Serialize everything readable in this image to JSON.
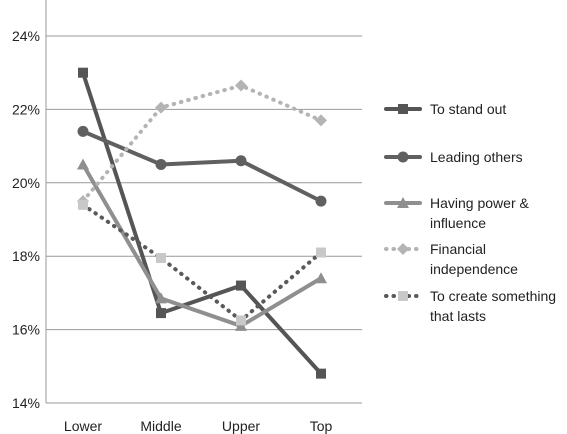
{
  "chart_data": {
    "type": "line",
    "title": "",
    "xlabel": "",
    "ylabel": "",
    "categories": [
      "Lower",
      "Middle",
      "Upper",
      "Top"
    ],
    "ylim": [
      14,
      24
    ],
    "yticks": [
      {
        "value": 14,
        "label": "14%"
      },
      {
        "value": 16,
        "label": "16%"
      },
      {
        "value": 18,
        "label": "18%"
      },
      {
        "value": 20,
        "label": "20%"
      },
      {
        "value": 22,
        "label": "22%"
      },
      {
        "value": 24,
        "label": "24%"
      }
    ],
    "grid": "horizontal",
    "legend_position": "right",
    "series": [
      {
        "name_lines": [
          "To stand out"
        ],
        "values": [
          23.0,
          16.45,
          17.2,
          14.8
        ],
        "color": "#555555",
        "dash": "solid",
        "marker": "square"
      },
      {
        "name_lines": [
          "Leading others"
        ],
        "values": [
          21.4,
          20.5,
          20.6,
          19.5
        ],
        "color": "#606060",
        "dash": "solid",
        "marker": "circle"
      },
      {
        "name_lines": [
          "Having power &",
          "influence"
        ],
        "values": [
          20.5,
          16.85,
          16.1,
          17.4
        ],
        "color": "#8f8f8f",
        "dash": "solid",
        "marker": "triangle"
      },
      {
        "name_lines": [
          "Financial",
          "independence"
        ],
        "values": [
          19.5,
          22.05,
          22.65,
          21.7
        ],
        "color": "#b4b4b4",
        "dash": "dotted",
        "marker": "diamond"
      },
      {
        "name_lines": [
          "To create something",
          "that lasts"
        ],
        "values": [
          19.4,
          17.95,
          16.25,
          18.1
        ],
        "color": "#5a5a5a",
        "dash": "dotted",
        "marker": "square",
        "marker_color": "#c8c8c8"
      }
    ]
  }
}
